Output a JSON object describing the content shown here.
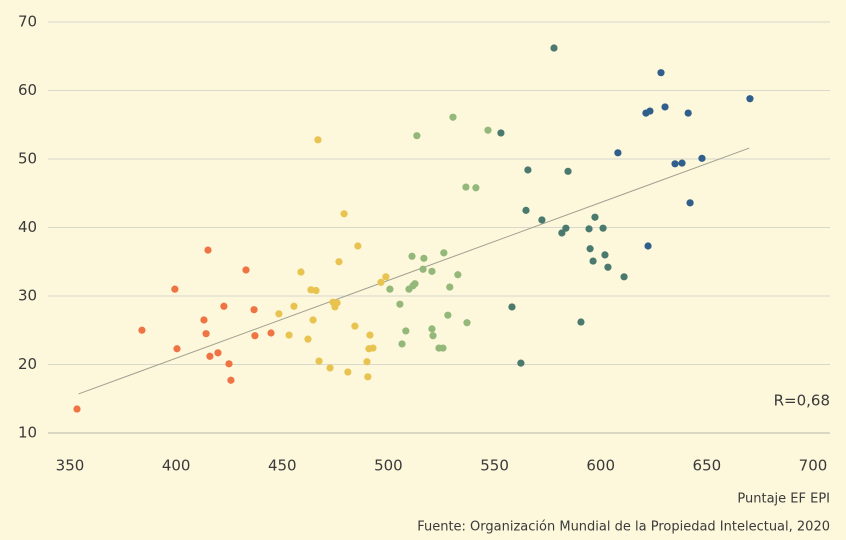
{
  "chart_data": {
    "type": "scatter",
    "xlabel": "Puntaje EF EPI",
    "source": "Fuente: Organización Mundial de la Propiedad Intelectual, 2020",
    "annotation": "R=0,68",
    "xlim": [
      350,
      700
    ],
    "xticks": [
      350,
      400,
      450,
      500,
      550,
      600,
      650,
      700
    ],
    "ylim": [
      10,
      70
    ],
    "yticks": [
      10,
      20,
      30,
      40,
      50,
      60,
      70
    ],
    "grid": true,
    "trendline": {
      "color": "#a0a090",
      "x": [
        354,
        670
      ],
      "y": [
        15.7,
        51.6
      ]
    },
    "series": [
      {
        "color": "#ee7444",
        "x": [
          353.3,
          383.9,
          400.4,
          399.4,
          413.1,
          414.1,
          415.0,
          415.9,
          419.7,
          422.5,
          424.9,
          425.8,
          432.9,
          436.7,
          437.1,
          444.7
        ],
        "values": [
          13.5,
          25.0,
          22.3,
          31.0,
          26.5,
          24.5,
          36.7,
          21.2,
          21.7,
          28.5,
          20.1,
          17.7,
          33.8,
          28.0,
          24.2,
          24.6
        ]
      },
      {
        "color": "#e8c350",
        "x": [
          448.4,
          453.2,
          455.5,
          458.8,
          462.1,
          463.5,
          464.5,
          465.9,
          466.8,
          467.3,
          472.5,
          473.9,
          474.8,
          475.8,
          476.7,
          479.1,
          480.9,
          484.2,
          485.6,
          489.9,
          490.3,
          490.8,
          491.3,
          492.7,
          496.5,
          498.8
        ],
        "values": [
          27.4,
          24.3,
          28.5,
          33.5,
          23.7,
          30.9,
          26.5,
          30.8,
          52.8,
          20.5,
          19.5,
          29.1,
          28.4,
          29.0,
          35.0,
          42.0,
          18.9,
          25.6,
          37.3,
          20.4,
          18.2,
          22.3,
          24.3,
          22.4,
          32.0,
          32.8
        ]
      },
      {
        "color": "#94b87a",
        "x": [
          500.7,
          505.4,
          506.4,
          508.2,
          509.7,
          511.1,
          511.6,
          512.5,
          513.4,
          516.3,
          516.7,
          520.5,
          520.5,
          521.0,
          523.8,
          525.7,
          526.1,
          528.0,
          528.9,
          530.4,
          532.7,
          536.5,
          537.0,
          541.2,
          546.9
        ],
        "values": [
          31.0,
          28.8,
          23.0,
          24.9,
          31.0,
          35.8,
          31.5,
          31.8,
          53.4,
          33.9,
          35.5,
          33.6,
          25.2,
          24.2,
          22.4,
          22.4,
          36.3,
          27.2,
          31.3,
          56.1,
          33.1,
          45.9,
          26.1,
          45.8,
          54.2
        ]
      },
      {
        "color": "#4a7a6e",
        "x": [
          553.0,
          558.2,
          562.4,
          564.8,
          565.7,
          572.3,
          578.0,
          581.7,
          583.6,
          584.6,
          590.7,
          594.5,
          595.0,
          596.4,
          597.3,
          601.1,
          602.0,
          603.4,
          611.0
        ],
        "values": [
          53.8,
          28.4,
          20.2,
          42.5,
          48.4,
          41.1,
          66.2,
          39.2,
          39.9,
          48.2,
          26.2,
          39.8,
          36.9,
          35.1,
          41.5,
          39.9,
          36.0,
          34.2,
          32.8
        ]
      },
      {
        "color": "#2f5f8a",
        "x": [
          608.1,
          621.3,
          622.3,
          623.2,
          628.4,
          630.3,
          635.0,
          638.3,
          641.2,
          642.1,
          647.7,
          670.3
        ],
        "values": [
          50.9,
          56.7,
          37.3,
          57.0,
          62.6,
          57.6,
          49.3,
          49.4,
          56.7,
          43.6,
          50.1,
          58.8
        ]
      }
    ]
  }
}
